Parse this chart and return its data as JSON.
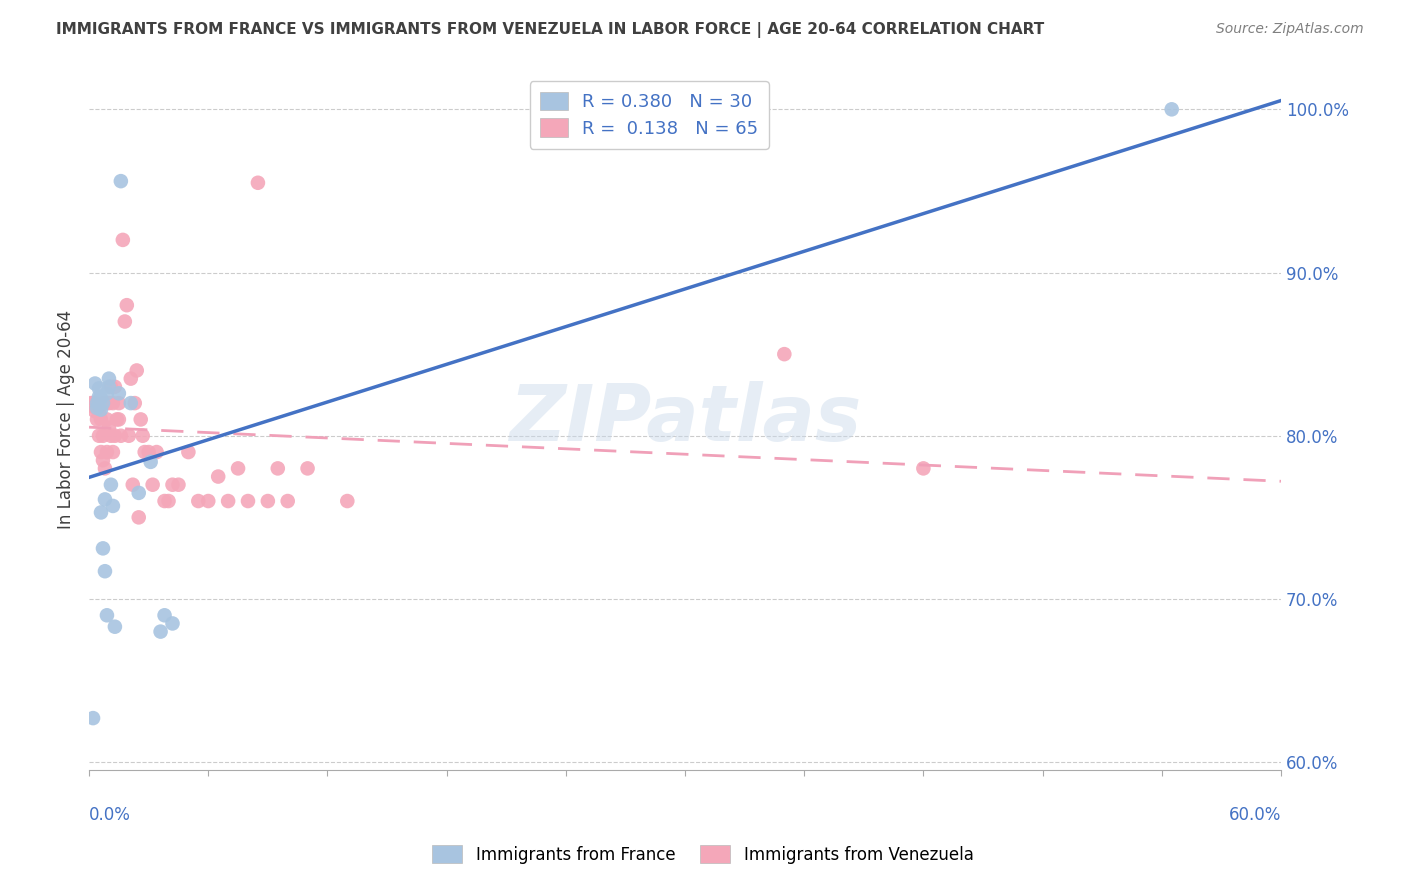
{
  "title": "IMMIGRANTS FROM FRANCE VS IMMIGRANTS FROM VENEZUELA IN LABOR FORCE | AGE 20-64 CORRELATION CHART",
  "source": "Source: ZipAtlas.com",
  "ylabel": "In Labor Force | Age 20-64",
  "right_yticks": [
    "60.0%",
    "70.0%",
    "80.0%",
    "90.0%",
    "100.0%"
  ],
  "right_ytick_vals": [
    0.6,
    0.7,
    0.8,
    0.9,
    1.0
  ],
  "xmin": 0.0,
  "xmax": 0.6,
  "ymin": 0.595,
  "ymax": 1.025,
  "france_r": 0.38,
  "france_n": 30,
  "venezuela_r": 0.138,
  "venezuela_n": 65,
  "legend_r1": "R = 0.380   N = 30",
  "legend_r2": "R =  0.138   N = 65",
  "france_color": "#a8c4e0",
  "venezuela_color": "#f4a7b9",
  "france_line_color": "#4472c4",
  "venezuela_line_color": "#f0a0b8",
  "title_color": "#404040",
  "source_color": "#808080",
  "watermark": "ZIPatlas",
  "axis_color": "#4472c4",
  "france_x": [
    0.002,
    0.003,
    0.004,
    0.004,
    0.005,
    0.005,
    0.005,
    0.006,
    0.006,
    0.006,
    0.007,
    0.007,
    0.008,
    0.008,
    0.009,
    0.009,
    0.01,
    0.01,
    0.011,
    0.012,
    0.013,
    0.015,
    0.016,
    0.021,
    0.025,
    0.031,
    0.036,
    0.038,
    0.042,
    0.545
  ],
  "france_y": [
    0.627,
    0.832,
    0.817,
    0.82,
    0.822,
    0.824,
    0.829,
    0.753,
    0.816,
    0.823,
    0.731,
    0.82,
    0.717,
    0.761,
    0.69,
    0.826,
    0.83,
    0.835,
    0.77,
    0.757,
    0.683,
    0.826,
    0.956,
    0.82,
    0.765,
    0.784,
    0.68,
    0.69,
    0.685,
    1.0
  ],
  "venezuela_x": [
    0.001,
    0.002,
    0.002,
    0.003,
    0.003,
    0.004,
    0.004,
    0.005,
    0.005,
    0.005,
    0.006,
    0.006,
    0.007,
    0.007,
    0.007,
    0.008,
    0.008,
    0.009,
    0.009,
    0.01,
    0.01,
    0.011,
    0.011,
    0.012,
    0.012,
    0.013,
    0.013,
    0.014,
    0.015,
    0.015,
    0.016,
    0.017,
    0.018,
    0.019,
    0.02,
    0.021,
    0.022,
    0.023,
    0.024,
    0.025,
    0.026,
    0.027,
    0.028,
    0.03,
    0.032,
    0.034,
    0.038,
    0.04,
    0.042,
    0.045,
    0.05,
    0.055,
    0.06,
    0.065,
    0.07,
    0.075,
    0.08,
    0.085,
    0.09,
    0.095,
    0.1,
    0.11,
    0.13,
    0.35,
    0.42
  ],
  "venezuela_y": [
    0.82,
    0.818,
    0.82,
    0.815,
    0.82,
    0.81,
    0.817,
    0.8,
    0.815,
    0.817,
    0.79,
    0.81,
    0.785,
    0.8,
    0.82,
    0.78,
    0.82,
    0.79,
    0.81,
    0.805,
    0.82,
    0.8,
    0.83,
    0.79,
    0.82,
    0.8,
    0.83,
    0.81,
    0.81,
    0.82,
    0.8,
    0.92,
    0.87,
    0.88,
    0.8,
    0.835,
    0.77,
    0.82,
    0.84,
    0.75,
    0.81,
    0.8,
    0.79,
    0.79,
    0.77,
    0.79,
    0.76,
    0.76,
    0.77,
    0.77,
    0.79,
    0.76,
    0.76,
    0.775,
    0.76,
    0.78,
    0.76,
    0.955,
    0.76,
    0.78,
    0.76,
    0.78,
    0.76,
    0.85,
    0.78
  ]
}
